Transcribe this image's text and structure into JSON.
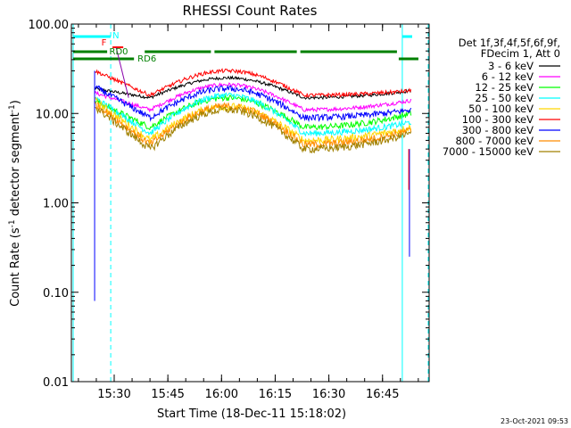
{
  "chart_data": {
    "type": "line",
    "title": "RHESSI Count Rates",
    "xlabel": "Start Time (18-Dec-11 15:18:02)",
    "ylabel_main": "Count Rate (s",
    "ylabel_exp": "-1",
    "ylabel_tail": " detector segment",
    "ylabel_exp2": "-1",
    "ylabel_close": ")",
    "y_scale": "log",
    "ylim": [
      0.01,
      100
    ],
    "xlim_minutes_after_start": [
      0,
      50
    ],
    "x_ticks": [
      {
        "label": "15:30",
        "min": 11.97
      },
      {
        "label": "15:45",
        "min": 26.97
      },
      {
        "label": "16:00",
        "min": 41.97
      },
      {
        "label": "16:15",
        "min": 56.97
      },
      {
        "label": "16:30",
        "min": 71.97
      },
      {
        "label": "16:45",
        "min": 86.97
      }
    ],
    "y_ticks": [
      {
        "label": "100.00",
        "value": 100
      },
      {
        "label": "10.00",
        "value": 10
      },
      {
        "label": "1.00",
        "value": 1
      },
      {
        "label": "0.10",
        "value": 0.1
      },
      {
        "label": "0.01",
        "value": 0.01
      }
    ],
    "legend_header": [
      "Det 1f,3f,4f,5f,6f,9f,",
      "FDecim 1, Att 0"
    ],
    "series": [
      {
        "name": "3 - 6 keV",
        "color": "#000000",
        "start": 19,
        "trough": 15,
        "peak": 25,
        "end": 18,
        "noise": 0.04
      },
      {
        "name": "6 - 12 keV",
        "color": "#ff00ff",
        "start": 17,
        "trough": 11,
        "peak": 21,
        "end": 14,
        "noise": 0.05
      },
      {
        "name": "12 - 25 keV",
        "color": "#00ff00",
        "start": 14,
        "trough": 7,
        "peak": 15,
        "end": 10,
        "noise": 0.08
      },
      {
        "name": "25 - 50 keV",
        "color": "#00ffff",
        "start": 15,
        "trough": 6,
        "peak": 16,
        "end": 8,
        "noise": 0.08
      },
      {
        "name": "50 - 100 keV",
        "color": "#ffd700",
        "start": 14,
        "trough": 5,
        "peak": 12,
        "end": 7,
        "noise": 0.1
      },
      {
        "name": "100 - 300 keV",
        "color": "#ff0000",
        "start": 30,
        "trough": 16,
        "peak": 30,
        "end": 18,
        "noise": 0.05
      },
      {
        "name": "300 - 800 keV",
        "color": "#0000ff",
        "start": 20,
        "trough": 9,
        "peak": 19,
        "end": 11,
        "noise": 0.08
      },
      {
        "name": "800 - 7000 keV",
        "color": "#ff8c00",
        "start": 13,
        "trough": 4.5,
        "peak": 12,
        "end": 6.5,
        "noise": 0.1
      },
      {
        "name": "7000 - 15000 keV",
        "color": "#a08000",
        "start": 12,
        "trough": 4,
        "peak": 11,
        "end": 6,
        "noise": 0.1
      }
    ],
    "annotations": [
      {
        "label": "N",
        "color": "#00ffff"
      },
      {
        "label": "F",
        "color": "#ff0000"
      },
      {
        "label": "RD0",
        "color": "#008000"
      },
      {
        "label": "RD6",
        "color": "#008000"
      }
    ],
    "grid": false,
    "legend_placement": "right"
  },
  "timestamp": "23-Oct-2021 09:53"
}
